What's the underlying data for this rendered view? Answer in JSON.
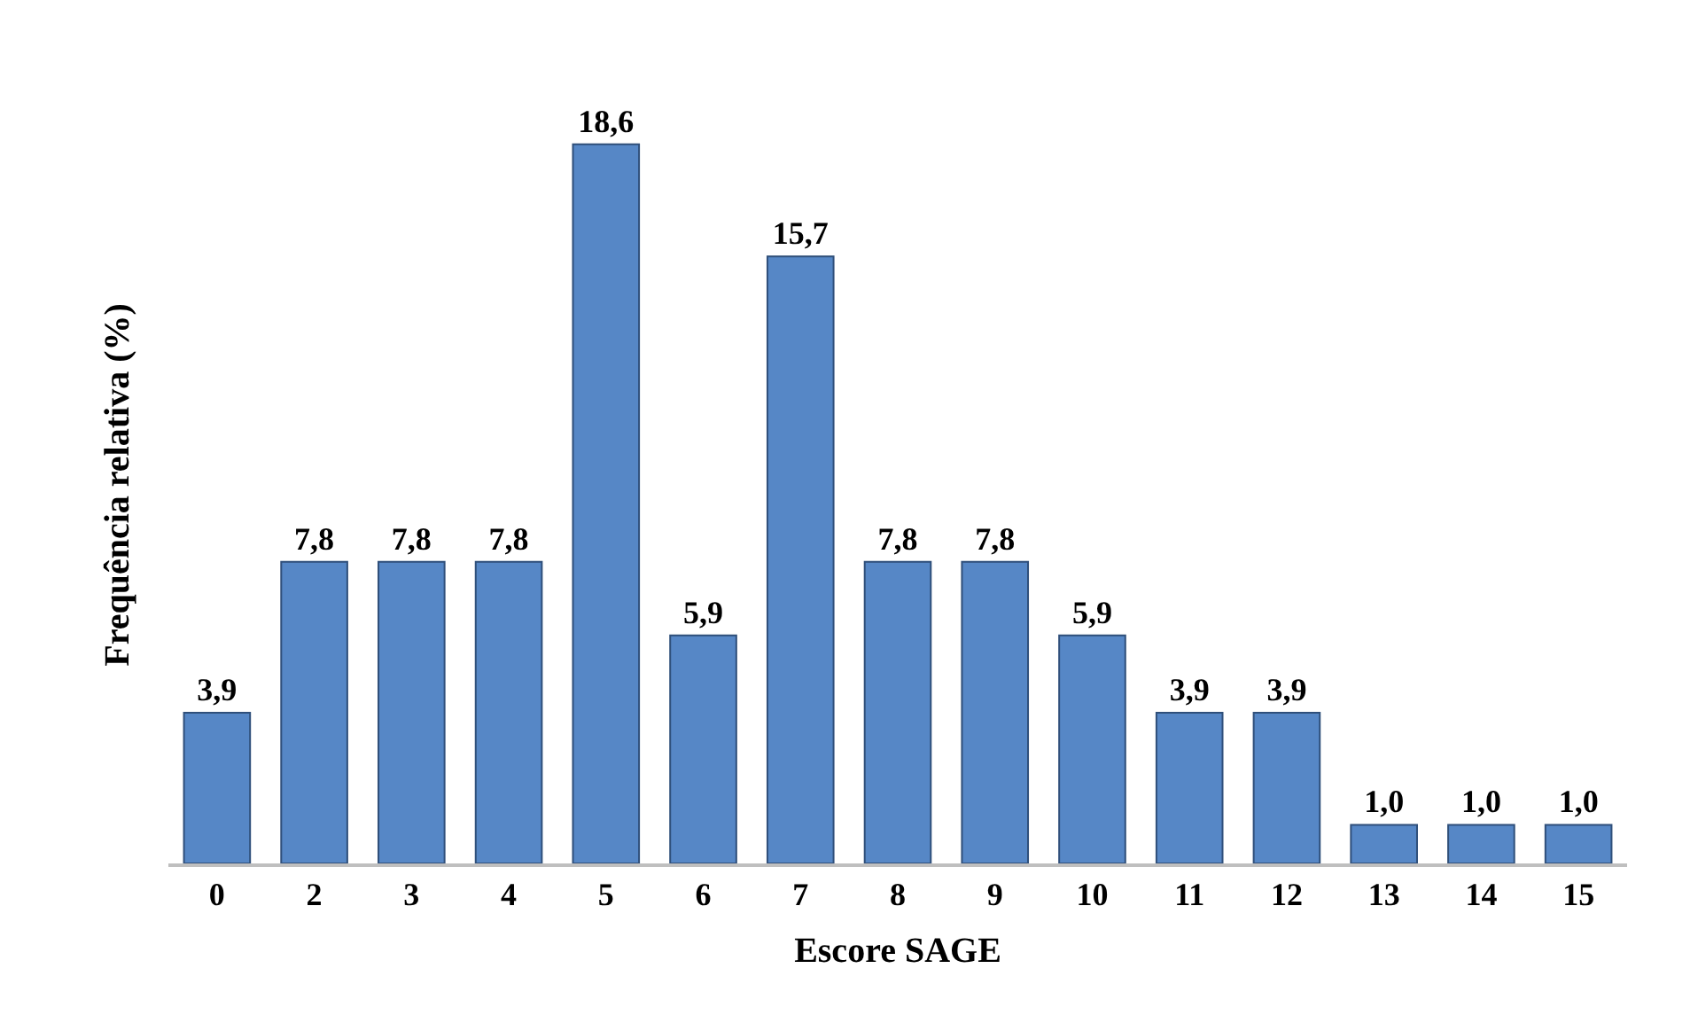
{
  "chart_data": {
    "type": "bar",
    "xlabel": "Escore SAGE",
    "ylabel": "Frequência relativa (%)",
    "categories": [
      "0",
      "2",
      "3",
      "4",
      "5",
      "6",
      "7",
      "8",
      "9",
      "10",
      "11",
      "12",
      "13",
      "14",
      "15"
    ],
    "values": [
      3.9,
      7.8,
      7.8,
      7.8,
      18.6,
      5.9,
      15.7,
      7.8,
      7.8,
      5.9,
      3.9,
      3.9,
      1.0,
      1.0,
      1.0
    ],
    "value_labels": [
      "3,9",
      "7,8",
      "7,8",
      "7,8",
      "18,6",
      "5,9",
      "15,7",
      "7,8",
      "7,8",
      "5,9",
      "3,9",
      "3,9",
      "1,0",
      "1,0",
      "1,0"
    ],
    "color": "#5687c6"
  }
}
